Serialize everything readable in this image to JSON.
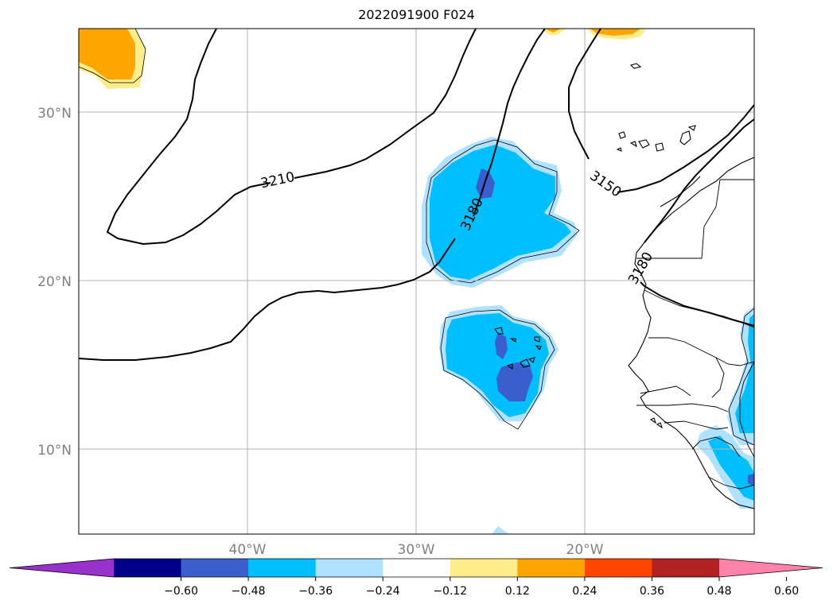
{
  "title": "2022091900 F024",
  "lat_labels": [
    "30°N",
    "20°N",
    "10°N"
  ],
  "lon_labels": [
    "40°W",
    "30°W",
    "20°W"
  ],
  "contour_labels": [
    "3210",
    "3180",
    "3150",
    "3180"
  ],
  "colorbar": {
    "ticks": [
      "−0.60",
      "−0.48",
      "−0.36",
      "−0.24",
      "−0.12",
      "0.12",
      "0.24",
      "0.36",
      "0.48",
      "0.60"
    ],
    "colors": [
      "#9932cc",
      "#00008b",
      "#3a5fcd",
      "#00bfff",
      "#b0e2ff",
      "#ffffff",
      "#ffec8b",
      "#ffa500",
      "#ff4500",
      "#b22222",
      "#ff82ab"
    ]
  },
  "colors": {
    "grid": "#b0b0b0",
    "axis_label": "#808080",
    "light_blue": "#b0e2ff",
    "deep_sky_blue": "#00bfff",
    "royal_blue": "#3a5fcd",
    "light_yellow": "#ffec8b",
    "orange": "#ffa500"
  }
}
